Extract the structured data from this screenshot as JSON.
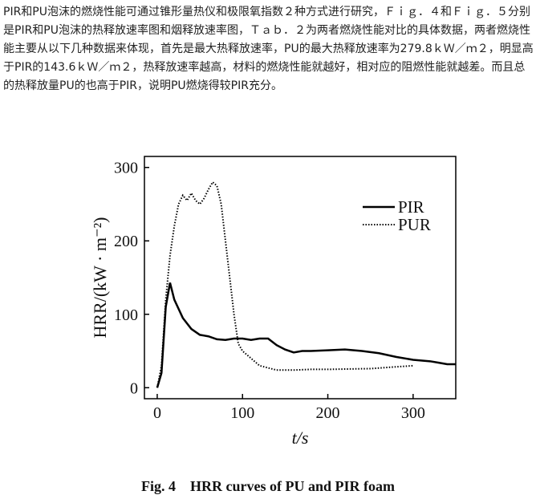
{
  "paragraph": "PIR和PU泡沫的燃烧性能可通过锥形量热仪和极限氧指数２种方式进行研究，Ｆｉｇ．４和Ｆｉｇ．５分别是PIR和PU泡沫的热释放速率图和烟释放速率图，Ｔａｂ．２为两者燃烧性能对比的具体数据，两者燃烧性能主要从以下几种数据来体现，首先是最大热释放速率，PU的最大热释放速率为279.8ｋＷ／ｍ２，明显高于PIR的143.6ｋＷ／ｍ２，热释放速率越高，材料的燃烧性能就越好，相对应的阻燃性能就越差。而且总的热释放量PU的也高于PIR，说明PU燃烧得较PIR充分。",
  "chart_data": {
    "type": "line",
    "x_label": "t/s",
    "y_label": "HRR/(kW · m⁻²)",
    "xlim": [
      -15,
      350
    ],
    "ylim": [
      -15,
      315
    ],
    "xticks": [
      0,
      100,
      200,
      300
    ],
    "yticks": [
      0,
      100,
      200,
      300
    ],
    "legend": "upper-right",
    "series": [
      {
        "name": "PIR",
        "color": "#000000",
        "style": "solid",
        "x": [
          0,
          5,
          10,
          15,
          20,
          30,
          40,
          50,
          60,
          70,
          80,
          90,
          100,
          110,
          120,
          130,
          140,
          150,
          160,
          170,
          180,
          200,
          220,
          240,
          260,
          280,
          300,
          320,
          330,
          340,
          350
        ],
        "values": [
          0,
          20,
          110,
          143,
          120,
          95,
          80,
          72,
          70,
          66,
          65,
          67,
          67,
          65,
          67,
          67,
          58,
          52,
          48,
          50,
          50,
          51,
          52,
          50,
          47,
          42,
          38,
          36,
          34,
          32,
          32
        ]
      },
      {
        "name": "PUR",
        "color": "#000000",
        "style": "dotted",
        "x": [
          0,
          5,
          10,
          15,
          20,
          25,
          30,
          35,
          40,
          45,
          50,
          55,
          60,
          65,
          70,
          75,
          80,
          85,
          90,
          95,
          100,
          110,
          120,
          130,
          140,
          160,
          180,
          200,
          250,
          300
        ],
        "values": [
          0,
          30,
          120,
          180,
          220,
          250,
          262,
          255,
          265,
          255,
          250,
          258,
          270,
          280,
          275,
          250,
          200,
          150,
          100,
          60,
          50,
          40,
          30,
          27,
          24,
          24,
          25,
          25,
          26,
          30
        ]
      }
    ]
  },
  "caption": "Fig. 4    HRR curves of PU and PIR foam"
}
